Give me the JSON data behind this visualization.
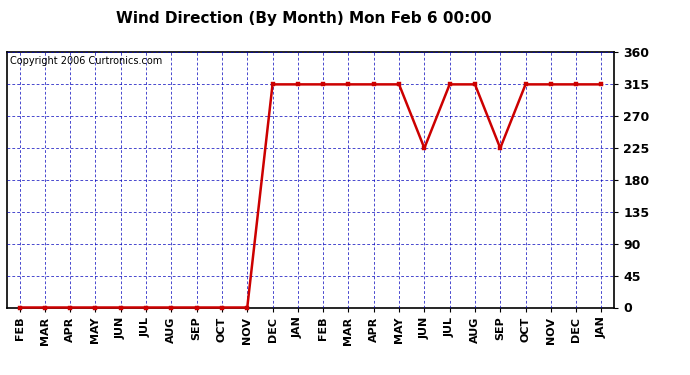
{
  "title": "Wind Direction (By Month) Mon Feb 6 00:00",
  "copyright": "Copyright 2006 Curtronics.com",
  "x_labels": [
    "FEB",
    "MAR",
    "APR",
    "MAY",
    "JUN",
    "JUL",
    "AUG",
    "SEP",
    "OCT",
    "NOV",
    "DEC",
    "JAN",
    "FEB",
    "MAR",
    "APR",
    "MAY",
    "JUN",
    "JUL",
    "AUG",
    "SEP",
    "OCT",
    "NOV",
    "DEC",
    "JAN"
  ],
  "y_values": [
    0,
    0,
    0,
    0,
    0,
    0,
    0,
    0,
    0,
    0,
    315,
    315,
    315,
    315,
    315,
    315,
    225,
    315,
    315,
    225,
    315,
    315,
    315,
    315
  ],
  "yticks": [
    0,
    45,
    90,
    135,
    180,
    225,
    270,
    315,
    360
  ],
  "ylim": [
    0,
    360
  ],
  "line_color": "#cc0000",
  "marker": "s",
  "marker_color": "#cc0000",
  "marker_size": 3,
  "grid_color": "#0000bb",
  "bg_color": "#ffffff",
  "title_fontsize": 11,
  "copyright_fontsize": 7,
  "tick_label_fontsize": 8,
  "line_width": 1.8
}
